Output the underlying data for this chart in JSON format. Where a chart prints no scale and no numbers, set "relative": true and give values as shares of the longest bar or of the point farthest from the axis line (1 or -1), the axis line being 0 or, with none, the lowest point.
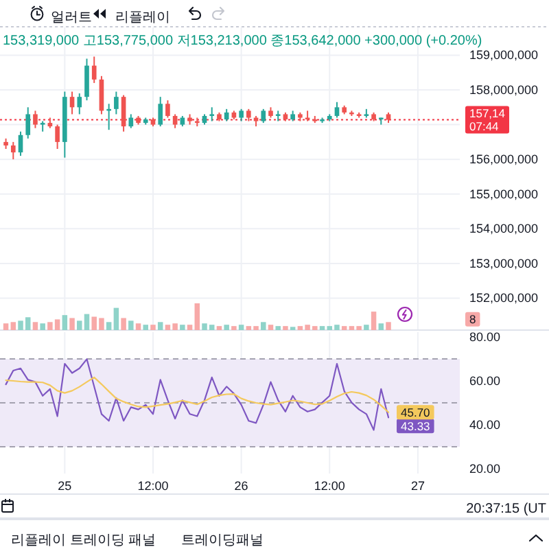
{
  "chart_data": [
    {
      "type": "candlestick",
      "subtitle": "153,319,000 고153,775,000 저153,213,000 종153,642,000 +300,000 (+0.20%)",
      "categories": [
        null,
        null,
        null,
        null,
        null,
        null,
        null,
        null,
        null,
        null,
        null,
        null,
        null,
        null,
        null,
        null,
        null,
        null,
        null,
        null,
        null,
        null,
        null,
        null,
        null,
        null,
        null,
        null,
        null,
        null,
        null,
        null,
        null,
        null,
        null,
        null,
        null,
        null,
        null,
        null,
        null,
        null,
        null,
        null,
        null,
        null,
        null,
        null,
        null,
        null,
        null,
        null,
        null,
        null,
        null,
        null,
        null,
        null,
        null,
        null,
        null,
        null
      ],
      "ohlc": [
        [
          156500000,
          156600000,
          156300000,
          156400000
        ],
        [
          156400000,
          156500000,
          156000000,
          156200000
        ],
        [
          156200000,
          156800000,
          156100000,
          156700000
        ],
        [
          156700000,
          157500000,
          156600000,
          157300000
        ],
        [
          157300000,
          157400000,
          156900000,
          157000000
        ],
        [
          157000000,
          157100000,
          156800000,
          157050000
        ],
        [
          157050000,
          157200000,
          156900000,
          156950000
        ],
        [
          156950000,
          157000000,
          156300000,
          156500000
        ],
        [
          156500000,
          157950000,
          156050000,
          157800000
        ],
        [
          157800000,
          157950000,
          157300000,
          157500000
        ],
        [
          157500000,
          157900000,
          157300000,
          157800000
        ],
        [
          157800000,
          158900000,
          157700000,
          158700000
        ],
        [
          158700000,
          158960000,
          158200000,
          158300000
        ],
        [
          158300000,
          158400000,
          157300000,
          157400000
        ],
        [
          157400000,
          157600000,
          156850000,
          157450000
        ],
        [
          157450000,
          157950000,
          157300000,
          157800000
        ],
        [
          157800000,
          157850000,
          156800000,
          156950000
        ],
        [
          156950000,
          157300000,
          156900000,
          157200000
        ],
        [
          157200000,
          157250000,
          157000000,
          157050000
        ],
        [
          157050000,
          157200000,
          157000000,
          157150000
        ],
        [
          157150000,
          157200000,
          156950000,
          157000000
        ],
        [
          157000000,
          157800000,
          156950000,
          157600000
        ],
        [
          157600000,
          157700000,
          157200000,
          157250000
        ],
        [
          157250000,
          157300000,
          156900000,
          157000000
        ],
        [
          157000000,
          157250000,
          156950000,
          157200000
        ],
        [
          157200000,
          157300000,
          157000000,
          157100000
        ],
        [
          157100000,
          157200000,
          156950000,
          157050000
        ],
        [
          157050000,
          157300000,
          157000000,
          157250000
        ],
        [
          157250000,
          157500000,
          157100000,
          157300000
        ],
        [
          157300000,
          157350000,
          157100000,
          157150000
        ],
        [
          157150000,
          157450000,
          157100000,
          157350000
        ],
        [
          157350000,
          157400000,
          157150000,
          157200000
        ],
        [
          157200000,
          157450000,
          157100000,
          157400000
        ],
        [
          157400000,
          157450000,
          157100000,
          157200000
        ],
        [
          157200000,
          157250000,
          156950000,
          157100000
        ],
        [
          157100000,
          157450000,
          157050000,
          157400000
        ],
        [
          157400000,
          157500000,
          157200000,
          157250000
        ],
        [
          157250000,
          157400000,
          157100000,
          157300000
        ],
        [
          157300000,
          157350000,
          157100000,
          157150000
        ],
        [
          157150000,
          157400000,
          157100000,
          157300000
        ],
        [
          157300000,
          157350000,
          157100000,
          157200000
        ],
        [
          157200000,
          157400000,
          157100000,
          157150000
        ],
        [
          157150000,
          157250000,
          157050000,
          157100000
        ],
        [
          157100000,
          157200000,
          157050000,
          157150000
        ],
        [
          157150000,
          157300000,
          157100000,
          157250000
        ],
        [
          157250000,
          157650000,
          157200000,
          157500000
        ],
        [
          157500000,
          157550000,
          157300000,
          157350000
        ],
        [
          157350000,
          157400000,
          157250000,
          157300000
        ],
        [
          157300000,
          157350000,
          157200000,
          157250000
        ],
        [
          157250000,
          157450000,
          157200000,
          157300000
        ],
        [
          157300000,
          157350000,
          157100000,
          157150000
        ],
        [
          157150000,
          157200000,
          157000000,
          157200000
        ],
        [
          157300000,
          157350000,
          157050000,
          157140000
        ],
        null,
        null,
        null,
        null,
        null,
        null,
        null,
        null,
        null
      ],
      "colors": [
        "#ef5350",
        "#ef5350",
        "#26a69a",
        "#26a69a",
        "#ef5350",
        "#26a69a",
        "#ef5350",
        "#ef5350",
        "#26a69a",
        "#ef5350",
        "#26a69a",
        "#26a69a",
        "#ef5350",
        "#ef5350",
        "#26a69a",
        "#26a69a",
        "#ef5350",
        "#26a69a",
        "#ef5350",
        "#26a69a",
        "#ef5350",
        "#26a69a",
        "#ef5350",
        "#ef5350",
        "#26a69a",
        "#ef5350",
        "#ef5350",
        "#26a69a",
        "#26a69a",
        "#ef5350",
        "#26a69a",
        "#ef5350",
        "#26a69a",
        "#ef5350",
        "#ef5350",
        "#26a69a",
        "#ef5350",
        "#26a69a",
        "#ef5350",
        "#26a69a",
        "#ef5350",
        "#ef5350",
        "#ef5350",
        "#26a69a",
        "#26a69a",
        "#26a69a",
        "#ef5350",
        "#ef5350",
        "#ef5350",
        "#26a69a",
        "#ef5350",
        "#26a69a",
        "#ef5350",
        null,
        null,
        null,
        null,
        null,
        null,
        null,
        null,
        null
      ],
      "ylim": [
        151100000,
        159800000
      ],
      "yticks": [
        {
          "value": 152000000,
          "label": "152,000,000"
        },
        {
          "value": 153000000,
          "label": "153,000,000"
        },
        {
          "value": 154000000,
          "label": "154,000,000"
        },
        {
          "value": 155000000,
          "label": "155,000,000"
        },
        {
          "value": 156000000,
          "label": "156,000,000"
        },
        {
          "value": 157000000,
          "label": null
        },
        {
          "value": 158000000,
          "label": "158,000,000"
        },
        {
          "value": 159000000,
          "label": "159,000,000"
        }
      ],
      "tick_labels": "y",
      "grid": true,
      "ref_lines": [
        {
          "axis": "y",
          "value": 157140000,
          "color": "#f23645",
          "line_style": "dotted"
        }
      ],
      "annotations": [
        "얼러트",
        "리플레이",
        "리플레이 트레이딩 패널",
        "트레이딩패널",
        "20:37:15 (UT",
        "157,14",
        "07:44"
      ]
    },
    {
      "type": "bar",
      "relative": true,
      "categories": [
        null,
        null,
        null,
        null,
        null,
        null,
        null,
        null,
        null,
        null,
        null,
        null,
        null,
        null,
        null,
        null,
        null,
        null,
        null,
        null,
        null,
        null,
        null,
        null,
        null,
        null,
        null,
        null,
        null,
        null,
        null,
        null,
        null,
        null,
        null,
        null,
        null,
        null,
        null,
        null,
        null,
        null,
        null,
        null,
        null,
        null,
        null,
        null,
        null,
        null,
        null,
        null,
        null,
        null,
        null,
        null,
        null,
        null,
        null,
        null,
        null,
        null
      ],
      "values": [
        0.25,
        0.3,
        0.35,
        0.48,
        0.3,
        0.25,
        0.3,
        0.4,
        0.56,
        0.45,
        0.35,
        0.6,
        0.5,
        0.45,
        0.3,
        0.83,
        0.45,
        0.35,
        0.25,
        0.2,
        0.2,
        0.3,
        0.2,
        0.25,
        0.2,
        0.2,
        1,
        0.25,
        0.2,
        0.15,
        0.2,
        0.15,
        0.2,
        0.15,
        0.15,
        0.3,
        0.2,
        0.15,
        0.15,
        0.12,
        0.15,
        0.2,
        0.15,
        0.15,
        0.15,
        0.2,
        0.15,
        0.15,
        0.15,
        0.2,
        0.69,
        0.25,
        0.3,
        null,
        null,
        null,
        null,
        null,
        null,
        null,
        null,
        null
      ],
      "colors": [
        "#f7a9a8",
        "#f7a9a8",
        "#8fd3c9",
        "#8fd3c9",
        "#f7a9a8",
        "#8fd3c9",
        "#f7a9a8",
        "#f7a9a8",
        "#8fd3c9",
        "#f7a9a8",
        "#8fd3c9",
        "#8fd3c9",
        "#f7a9a8",
        "#f7a9a8",
        "#8fd3c9",
        "#8fd3c9",
        "#f7a9a8",
        "#8fd3c9",
        "#f7a9a8",
        "#8fd3c9",
        "#f7a9a8",
        "#8fd3c9",
        "#f7a9a8",
        "#f7a9a8",
        "#8fd3c9",
        "#f7a9a8",
        "#f7a9a8",
        "#8fd3c9",
        "#8fd3c9",
        "#f7a9a8",
        "#8fd3c9",
        "#f7a9a8",
        "#8fd3c9",
        "#f7a9a8",
        "#f7a9a8",
        "#8fd3c9",
        "#f7a9a8",
        "#8fd3c9",
        "#f7a9a8",
        "#8fd3c9",
        "#f7a9a8",
        "#f7a9a8",
        "#f7a9a8",
        "#8fd3c9",
        "#8fd3c9",
        "#8fd3c9",
        "#f7a9a8",
        "#f7a9a8",
        "#f7a9a8",
        "#8fd3c9",
        "#f7a9a8",
        "#8fd3c9",
        "#f7a9a8",
        null,
        null,
        null,
        null,
        null,
        null,
        null,
        null,
        null
      ],
      "tick_labels": false,
      "annotations": [
        "8"
      ]
    },
    {
      "type": "line",
      "categories": [
        null,
        null,
        null,
        null,
        null,
        null,
        null,
        null,
        "25",
        null,
        null,
        null,
        null,
        null,
        null,
        null,
        null,
        null,
        null,
        null,
        "12:00",
        null,
        null,
        null,
        null,
        null,
        null,
        null,
        null,
        null,
        null,
        null,
        "26",
        null,
        null,
        null,
        null,
        null,
        null,
        null,
        null,
        null,
        null,
        null,
        "12:00",
        null,
        null,
        null,
        null,
        null,
        null,
        null,
        null,
        null,
        null,
        null,
        "27",
        null,
        null,
        null,
        null,
        null
      ],
      "series": [
        {
          "color": "#7e57c2",
          "values": [
            58.4,
            64.7,
            65.7,
            60.5,
            59.5,
            53.2,
            56.3,
            43.9,
            67.8,
            63.6,
            65.7,
            69.9,
            57.4,
            44.9,
            41.8,
            52.2,
            41.8,
            48.0,
            47.0,
            49.1,
            44.9,
            60.5,
            51.2,
            42.8,
            51.2,
            44.9,
            43.9,
            51.2,
            61.6,
            53.2,
            57.4,
            54.2,
            49.1,
            41.8,
            40.8,
            49.1,
            59.5,
            51.2,
            46.0,
            53.2,
            48.0,
            46.0,
            47.0,
            50.1,
            53.2,
            67.8,
            55.3,
            50.1,
            47.0,
            44.9,
            37.6,
            56.3,
            43.33,
            null,
            null,
            null,
            null,
            null,
            null,
            null,
            null,
            null
          ],
          "value_labels": [
            null,
            null,
            null,
            null,
            null,
            null,
            null,
            null,
            null,
            null,
            null,
            null,
            null,
            null,
            null,
            null,
            null,
            null,
            null,
            null,
            null,
            null,
            null,
            null,
            null,
            null,
            null,
            null,
            null,
            null,
            null,
            null,
            null,
            null,
            null,
            null,
            null,
            null,
            null,
            null,
            null,
            null,
            null,
            null,
            null,
            null,
            null,
            null,
            null,
            null,
            null,
            null,
            "43.33",
            null,
            null,
            null,
            null,
            null,
            null,
            null,
            null,
            null
          ]
        },
        {
          "color": "#f4c95d",
          "values": [
            60.3,
            60.0,
            59.7,
            59.5,
            59.5,
            59.3,
            58.0,
            55.5,
            54.5,
            55.5,
            57.3,
            59.5,
            61.6,
            58.5,
            55.2,
            52.0,
            50.5,
            49.3,
            48.3,
            48.0,
            48.5,
            49.0,
            49.5,
            50.2,
            51.0,
            50.2,
            49.3,
            50.8,
            52.5,
            53.4,
            53.9,
            54.0,
            52.0,
            50.8,
            50.0,
            49.5,
            49.2,
            49.8,
            50.4,
            51.1,
            50.7,
            50.0,
            49.3,
            49.5,
            51.0,
            52.8,
            54.3,
            55.0,
            54.5,
            53.4,
            51.5,
            48.8,
            45.7,
            null,
            null,
            null,
            null,
            null,
            null,
            null,
            null,
            null
          ],
          "value_labels": [
            null,
            null,
            null,
            null,
            null,
            null,
            null,
            null,
            null,
            null,
            null,
            null,
            null,
            null,
            null,
            null,
            null,
            null,
            null,
            null,
            null,
            null,
            null,
            null,
            null,
            null,
            null,
            null,
            null,
            null,
            null,
            null,
            null,
            null,
            null,
            null,
            null,
            null,
            null,
            null,
            null,
            null,
            null,
            null,
            null,
            null,
            null,
            null,
            null,
            null,
            null,
            null,
            "45.70",
            null,
            null,
            null,
            null,
            null,
            null,
            null,
            null,
            null
          ]
        }
      ],
      "ylim": [
        17.8,
        82.2
      ],
      "yticks": [
        {
          "value": 80,
          "label": "80.00"
        },
        {
          "value": 60,
          "label": "60.00"
        },
        {
          "value": 40,
          "label": "40.00"
        },
        {
          "value": 20,
          "label": "20.00"
        }
      ],
      "grid": "x",
      "bands": [
        {
          "axis": "y",
          "from": 30,
          "to": 70,
          "color": "#efeaf8"
        }
      ],
      "ref_lines": [
        {
          "axis": "y",
          "value": 70,
          "color": "#a4a2b0",
          "line_style": "dashed"
        },
        {
          "axis": "y",
          "value": 50,
          "color": "#a4a2b0",
          "line_style": "dashed"
        },
        {
          "axis": "y",
          "value": 30,
          "color": "#a4a2b0",
          "line_style": "dashed"
        }
      ]
    }
  ]
}
